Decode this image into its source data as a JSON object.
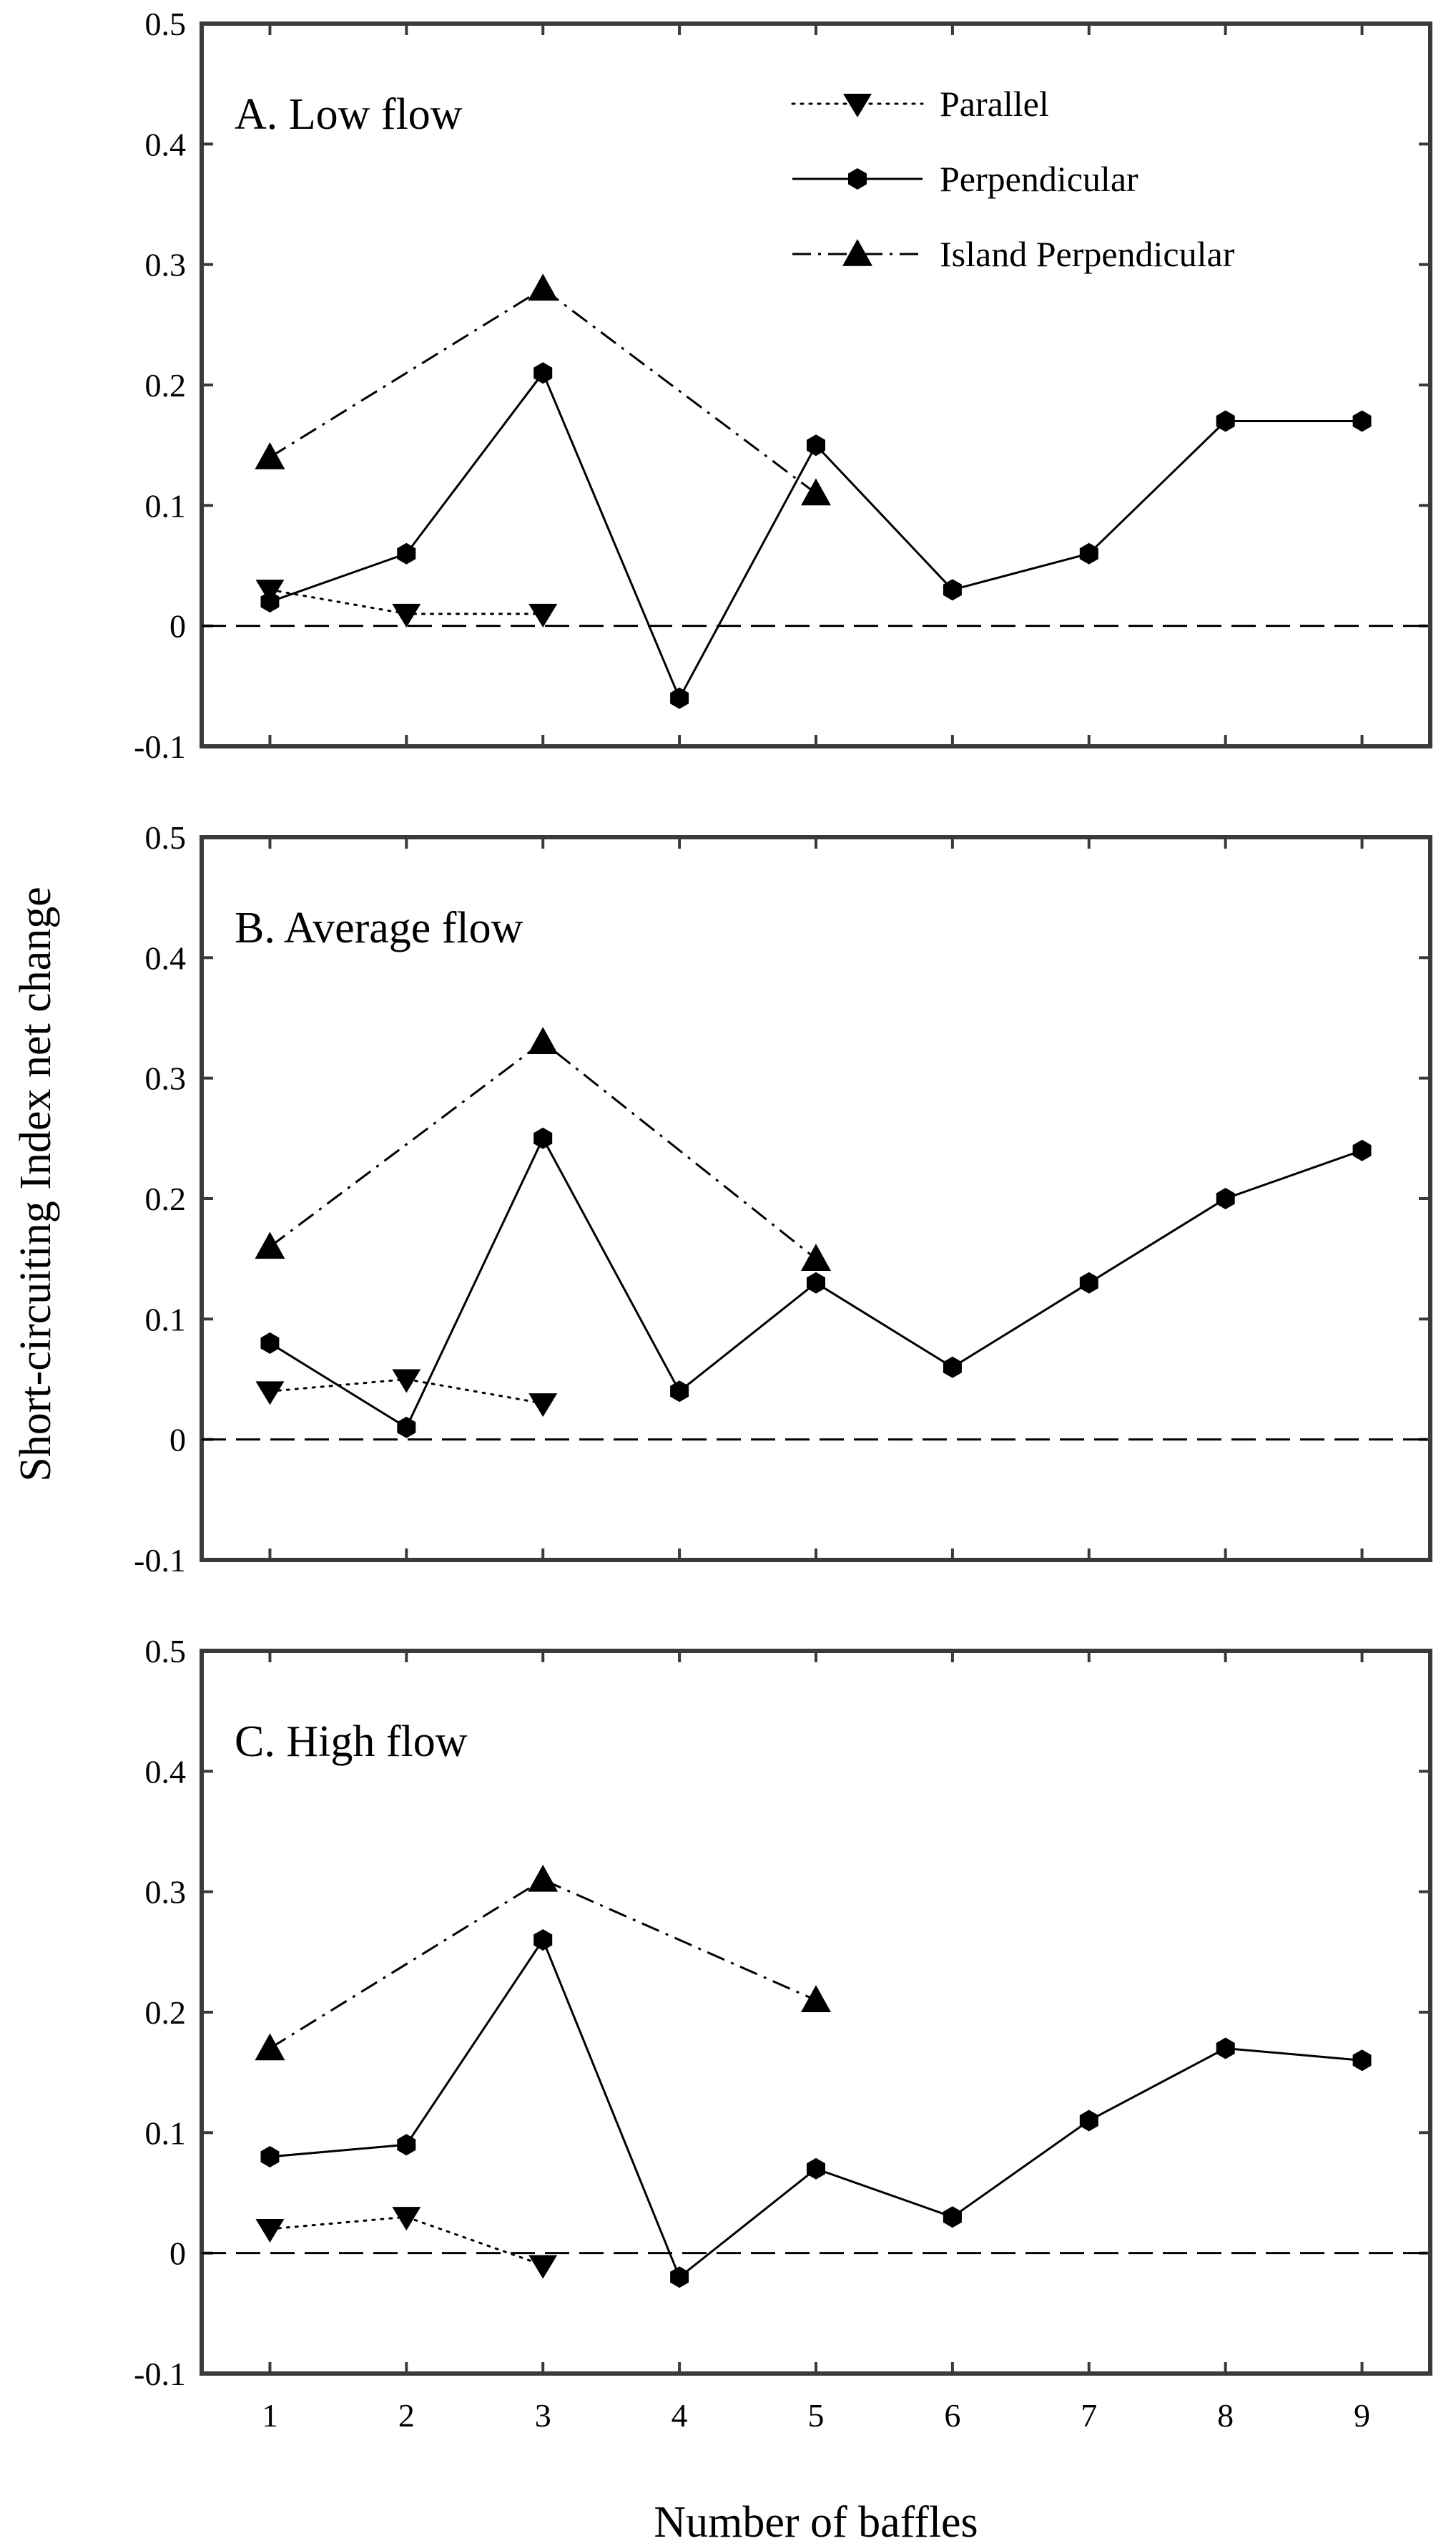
{
  "chart_data": {
    "type": "line",
    "ylabel": "Short-circuiting Index net change",
    "xlabel": "Number of baffles",
    "xlim": [
      0.5,
      9.5
    ],
    "ylim": [
      -0.1,
      0.5
    ],
    "xticks": [
      "1",
      "2",
      "3",
      "4",
      "5",
      "6",
      "7",
      "8",
      "9"
    ],
    "yticks": [
      "0.5",
      "0.4",
      "0.3",
      "0.2",
      "0.1",
      "0",
      "-0.1"
    ],
    "legend": {
      "location": "top-right of panel A",
      "entries": [
        "Parallel",
        "Perpendicular",
        "Island Perpendicular"
      ]
    },
    "panels": [
      {
        "title": "A. Low flow",
        "series": [
          {
            "name": "Parallel",
            "x": [
              1,
              2,
              3
            ],
            "values": [
              0.03,
              0.01,
              0.01
            ]
          },
          {
            "name": "Perpendicular",
            "x": [
              1,
              2,
              3,
              4,
              5,
              6,
              7,
              8,
              9
            ],
            "values": [
              0.02,
              0.06,
              0.21,
              -0.06,
              0.15,
              0.03,
              0.06,
              0.17,
              0.17
            ]
          },
          {
            "name": "Island Perpendicular",
            "x": [
              1,
              3,
              5
            ],
            "values": [
              0.14,
              0.28,
              0.11
            ]
          }
        ]
      },
      {
        "title": "B. Average flow",
        "series": [
          {
            "name": "Parallel",
            "x": [
              1,
              2,
              3
            ],
            "values": [
              0.04,
              0.05,
              0.03
            ]
          },
          {
            "name": "Perpendicular",
            "x": [
              1,
              2,
              3,
              4,
              5,
              6,
              7,
              8,
              9
            ],
            "values": [
              0.08,
              0.01,
              0.25,
              0.04,
              0.13,
              0.06,
              0.13,
              0.2,
              0.24
            ]
          },
          {
            "name": "Island Perpendicular",
            "x": [
              1,
              3,
              5
            ],
            "values": [
              0.16,
              0.33,
              0.15
            ]
          }
        ]
      },
      {
        "title": "C. High flow",
        "series": [
          {
            "name": "Parallel",
            "x": [
              1,
              2,
              3
            ],
            "values": [
              0.02,
              0.03,
              -0.01
            ]
          },
          {
            "name": "Perpendicular",
            "x": [
              1,
              2,
              3,
              4,
              5,
              6,
              7,
              8,
              9
            ],
            "values": [
              0.08,
              0.09,
              0.26,
              -0.02,
              0.07,
              0.03,
              0.11,
              0.17,
              0.16
            ]
          },
          {
            "name": "Island Perpendicular",
            "x": [
              1,
              3,
              5
            ],
            "values": [
              0.17,
              0.31,
              0.21
            ]
          }
        ]
      }
    ]
  }
}
